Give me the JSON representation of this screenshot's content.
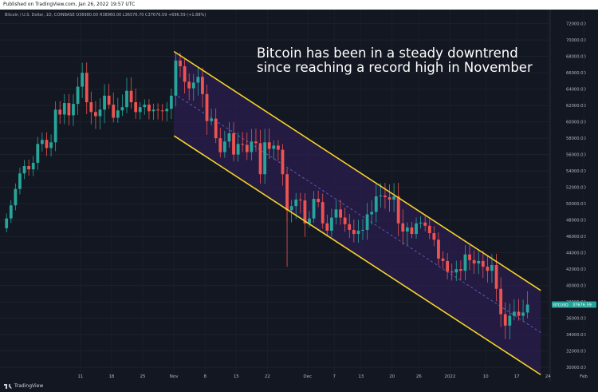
{
  "header": {
    "published": "Published on TradingView.com, Jan 26, 2022 19:57 UTC",
    "legend": "Bitcoin / U.S. Dollar, 1D, COINBASE O36980.00 H38960.00 L36576.70 C37676.59 +696.59 (+1.88%)"
  },
  "annotation": {
    "line1": "Bitcoin has been in a steady downtrend",
    "line2": "since reaching a record high in November"
  },
  "footer": {
    "brand": "TradingView"
  },
  "colors": {
    "background": "#131722",
    "up": "#26a69a",
    "down": "#ef5350",
    "channel_line": "#f5d328",
    "channel_fill": "#2a1d4d",
    "midline": "#6e6bd6",
    "text": "#b2b5be"
  },
  "chart_data": {
    "type": "candlestick",
    "symbol": "Bitcoin / U.S. Dollar",
    "interval": "1D",
    "exchange": "COINBASE",
    "last_price_label": "BTCUSD",
    "last_price": "37676.59",
    "ohlc": {
      "open": "36980.00",
      "high": "38960.00",
      "low": "36576.70",
      "close": "37676.59",
      "change": "+696.59 (+1.88%)"
    },
    "ylim": [
      29000,
      73000
    ],
    "y_ticks": [
      "30000.00",
      "32000.00",
      "34000.00",
      "36000.00",
      "38000.00",
      "40000.00",
      "42000.00",
      "44000.00",
      "46000.00",
      "48000.00",
      "50000.00",
      "52000.00",
      "54000.00",
      "56000.00",
      "58000.00",
      "60000.00",
      "62000.00",
      "64000.00",
      "66000.00",
      "68000.00",
      "70000.00",
      "72000.00"
    ],
    "x_ticks": [
      {
        "label": "11",
        "index": 10
      },
      {
        "label": "18",
        "index": 17
      },
      {
        "label": "25",
        "index": 24
      },
      {
        "label": "Nov",
        "index": 31
      },
      {
        "label": "8",
        "index": 38
      },
      {
        "label": "15",
        "index": 45
      },
      {
        "label": "22",
        "index": 52
      },
      {
        "label": "Dec",
        "index": 61
      },
      {
        "label": "7",
        "index": 67
      },
      {
        "label": "13",
        "index": 73
      },
      {
        "label": "20",
        "index": 80
      },
      {
        "label": "26",
        "index": 86
      },
      {
        "label": "2022",
        "index": 93
      },
      {
        "label": "10",
        "index": 101
      },
      {
        "label": "17",
        "index": 108
      },
      {
        "label": "24",
        "index": 115
      },
      {
        "label": "Feb",
        "index": 123
      }
    ],
    "closes": [
      48200,
      49800,
      51800,
      53700,
      54600,
      54200,
      55000,
      57300,
      57800,
      56800,
      57500,
      61500,
      60900,
      62300,
      60800,
      62200,
      64300,
      66000,
      62400,
      61200,
      60700,
      61500,
      63200,
      62100,
      60500,
      61400,
      61800,
      63800,
      62400,
      61200,
      61800,
      62100,
      61300,
      61500,
      61400,
      61300,
      61600,
      63200,
      67500,
      66800,
      64900,
      64100,
      64800,
      65500,
      63400,
      60100,
      60400,
      58000,
      56300,
      57600,
      58600,
      56000,
      57300,
      57200,
      56300,
      57600,
      57400,
      53600,
      57500,
      56700,
      57100,
      56600,
      53600,
      49200,
      49700,
      50500,
      50400,
      47600,
      48200,
      50600,
      50200,
      47600,
      46700,
      48300,
      49300,
      48300,
      47500,
      46800,
      46300,
      46700,
      46800,
      48700,
      49000,
      50900,
      51000,
      50800,
      50500,
      50900,
      47600,
      46600,
      47100,
      46300,
      47600,
      47700,
      47300,
      46400,
      45600,
      43300,
      43000,
      41700,
      41600,
      42000,
      41800,
      43800,
      43100,
      42700,
      43000,
      42300,
      41800,
      42500,
      39600,
      36500,
      35100,
      36300,
      36800,
      36300,
      36700,
      37676.59
    ],
    "channel": {
      "upper": [
        {
          "x": "Nov 9",
          "y": 68600
        },
        {
          "x": "Jan 30",
          "y": 39400
        }
      ],
      "lower": [
        {
          "x": "Nov 9",
          "y": 58300
        },
        {
          "x": "Jan 30",
          "y": 29100
        }
      ]
    }
  }
}
